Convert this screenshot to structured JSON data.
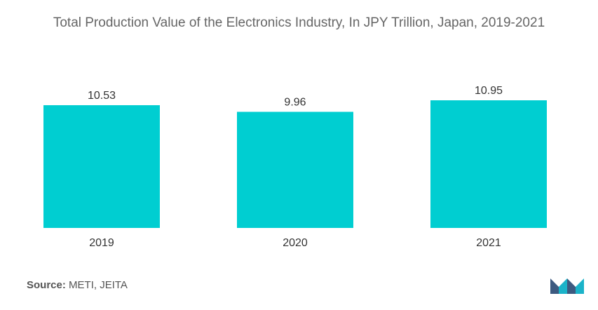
{
  "chart_data": {
    "type": "bar",
    "title": "Total Production Value of the Electronics Industry, In JPY Trillion, Japan, 2019-2021",
    "categories": [
      "2019",
      "2020",
      "2021"
    ],
    "values": [
      10.53,
      9.96,
      10.95
    ],
    "value_labels": [
      "10.53",
      "9.96",
      "10.95"
    ],
    "xlabel": "",
    "ylabel": "",
    "ylim": [
      0,
      10.95
    ],
    "grid": false,
    "legend": "none",
    "bar_color": "#00CED1"
  },
  "source": {
    "label": "Source:",
    "text": "METI, JEITA"
  },
  "colors": {
    "logo_dark": "#3D5A80",
    "logo_teal": "#1BB3C9"
  }
}
